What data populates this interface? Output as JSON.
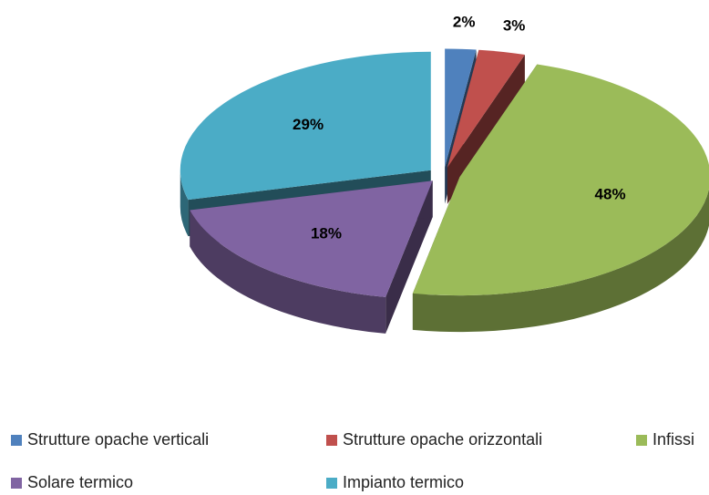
{
  "chart_data": {
    "type": "pie3d",
    "categories": [
      "Strutture opache verticali",
      "Strutture opache orizzontali",
      "Infissi",
      "Solare termico",
      "Impianto termico"
    ],
    "values": [
      2,
      3,
      48,
      18,
      29
    ],
    "value_labels": [
      "2%",
      "3%",
      "48%",
      "18%",
      "29%"
    ],
    "colors": [
      "#4f81bd",
      "#c0504d",
      "#9bbb59",
      "#8064a2",
      "#4bacc6"
    ],
    "exploded": true,
    "legend": "bottom"
  }
}
